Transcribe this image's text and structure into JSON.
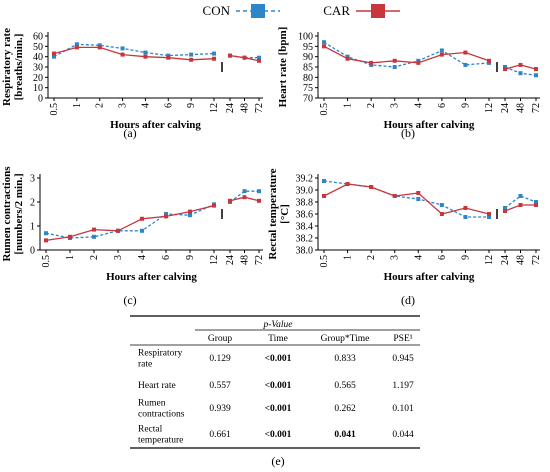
{
  "legend": {
    "items": [
      {
        "label": "CON",
        "color": "#2e86c8",
        "style": "dashed",
        "marker": "square"
      },
      {
        "label": "CAR",
        "color": "#c8363d",
        "style": "solid",
        "marker": "square"
      }
    ]
  },
  "chart_data": [
    {
      "type": "line",
      "panel_label": "(a)",
      "xlabel": "Hours after calving",
      "ylabel": "Respiratory rate\n[breaths/min.]",
      "x_tick_labels": [
        "0.5",
        "1",
        "2",
        "3",
        "4",
        "6",
        "9",
        "12",
        "24",
        "48",
        "72"
      ],
      "ylim": [
        0,
        60
      ],
      "y_ticks": [
        "0",
        "10",
        "20",
        "30",
        "40",
        "50",
        "60"
      ],
      "x": [
        "0.5",
        "1",
        "2",
        "3",
        "4",
        "6",
        "9",
        "12",
        "24",
        "48",
        "72"
      ],
      "series": [
        {
          "name": "CON",
          "values": [
            40,
            52,
            51,
            48,
            44,
            41,
            42,
            43,
            41,
            39,
            39
          ]
        },
        {
          "name": "CAR",
          "values": [
            43,
            49,
            49,
            42,
            40,
            39,
            37,
            38,
            41,
            39,
            36
          ]
        }
      ]
    },
    {
      "type": "line",
      "panel_label": "(b)",
      "xlabel": "Hours after calving",
      "ylabel": "Heart rate [bpm]",
      "x_tick_labels": [
        "0.5",
        "1",
        "2",
        "3",
        "4",
        "6",
        "9",
        "12",
        "24",
        "48",
        "72"
      ],
      "ylim": [
        70,
        100
      ],
      "y_ticks": [
        "70",
        "75",
        "80",
        "85",
        "90",
        "95",
        "100"
      ],
      "x": [
        "0.5",
        "1",
        "2",
        "3",
        "4",
        "6",
        "9",
        "12",
        "24",
        "48",
        "72"
      ],
      "series": [
        {
          "name": "CON",
          "values": [
            97,
            90,
            86,
            85,
            88,
            93,
            86,
            87,
            85,
            82,
            81
          ]
        },
        {
          "name": "CAR",
          "values": [
            95,
            89,
            87,
            88,
            87,
            91,
            92,
            88,
            84,
            86,
            84
          ]
        }
      ]
    },
    {
      "type": "line",
      "panel_label": "(c)",
      "xlabel": "Hours after calving",
      "ylabel": "Rumen contractions\n[numbers/2 min.]",
      "x_tick_labels": [
        "0.5",
        "1",
        "2",
        "3",
        "4",
        "6",
        "9",
        "12",
        "24",
        "48",
        "72"
      ],
      "ylim": [
        0,
        3
      ],
      "y_ticks": [
        "0",
        "1",
        "2",
        "3"
      ],
      "x": [
        "0.5",
        "1",
        "2",
        "3",
        "4",
        "6",
        "9",
        "12",
        "24",
        "48",
        "72"
      ],
      "series": [
        {
          "name": "CON",
          "values": [
            0.7,
            0.5,
            0.55,
            0.8,
            0.8,
            1.5,
            1.45,
            1.9,
            2.0,
            2.45,
            2.45
          ]
        },
        {
          "name": "CAR",
          "values": [
            0.4,
            0.55,
            0.85,
            0.8,
            1.3,
            1.4,
            1.6,
            1.85,
            2.05,
            2.2,
            2.05
          ]
        }
      ]
    },
    {
      "type": "line",
      "panel_label": "(d)",
      "xlabel": "Hours after calving",
      "ylabel": "Rectal temperature\n[°C]",
      "x_tick_labels": [
        "0.5",
        "1",
        "2",
        "3",
        "4",
        "6",
        "9",
        "12",
        "24",
        "48",
        "72"
      ],
      "ylim": [
        38.0,
        39.2
      ],
      "y_ticks": [
        "38.0",
        "38.2",
        "38.4",
        "38.6",
        "38.8",
        "39.0",
        "39.2"
      ],
      "x": [
        "0.5",
        "1",
        "2",
        "3",
        "4",
        "6",
        "9",
        "12",
        "24",
        "48",
        "72"
      ],
      "series": [
        {
          "name": "CON",
          "values": [
            39.15,
            39.1,
            39.05,
            38.9,
            38.85,
            38.75,
            38.55,
            38.55,
            38.7,
            38.9,
            38.8
          ]
        },
        {
          "name": "CAR",
          "values": [
            38.9,
            39.1,
            39.05,
            38.9,
            38.95,
            38.6,
            38.7,
            38.6,
            38.65,
            38.75,
            38.75
          ]
        }
      ]
    },
    {
      "type": "table",
      "panel_label": "(e)",
      "group_header": "p-Value",
      "columns": [
        "",
        "Group",
        "Time",
        "Group*Time",
        "PSE¹"
      ],
      "rows": [
        {
          "label": [
            "Respiratory",
            "rate"
          ],
          "cells": [
            "0.129",
            "<0.001",
            "0.833",
            "0.945"
          ],
          "bold": [
            false,
            true,
            false,
            false
          ]
        },
        {
          "label": [
            "Heart rate"
          ],
          "cells": [
            "0.557",
            "<0.001",
            "0.565",
            "1.197"
          ],
          "bold": [
            false,
            true,
            false,
            false
          ]
        },
        {
          "label": [
            "Rumen",
            "contractions"
          ],
          "cells": [
            "0.939",
            "<0.001",
            "0.262",
            "0.101"
          ],
          "bold": [
            false,
            true,
            false,
            false
          ]
        },
        {
          "label": [
            "Rectal",
            "temperature"
          ],
          "cells": [
            "0.661",
            "<0.001",
            "0.041",
            "0.044"
          ],
          "bold": [
            false,
            true,
            true,
            false
          ]
        }
      ]
    }
  ]
}
